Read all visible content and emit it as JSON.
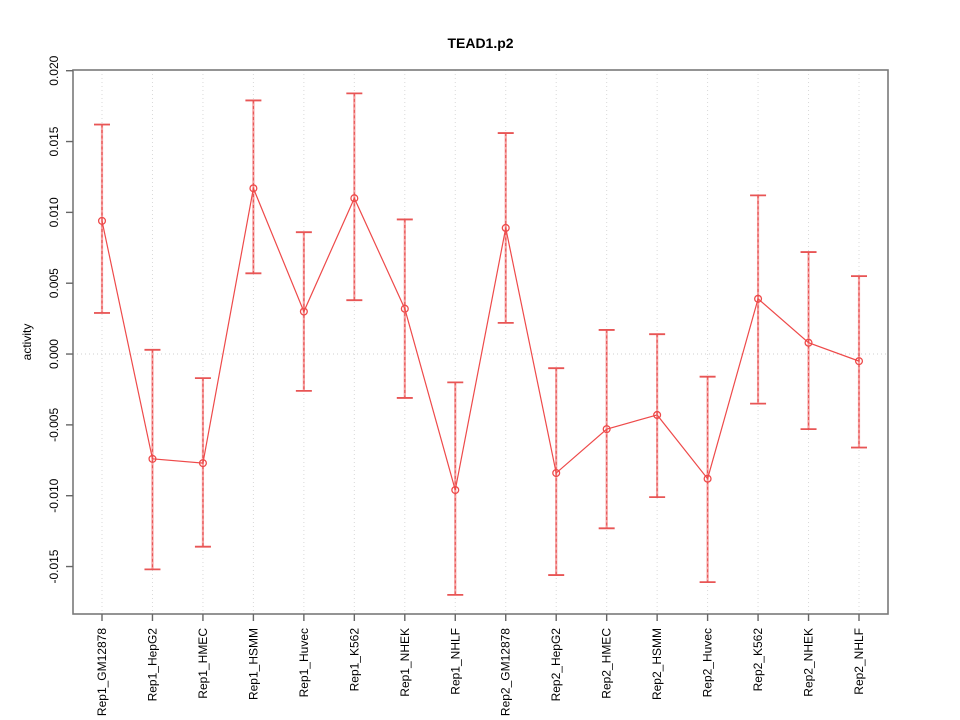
{
  "window": {
    "background": "#ffffff"
  },
  "chart_data": {
    "type": "line",
    "title": "TEAD1.p2",
    "xlabel": "",
    "ylabel": "activity",
    "legend": "none",
    "grid": "vertical dotted gridline at every category; horizontal dotted line at y=0",
    "marker": "open-circle",
    "error_bars": true,
    "categories": [
      "Rep1_GM12878",
      "Rep1_HepG2",
      "Rep1_HMEC",
      "Rep1_HSMM",
      "Rep1_Huvec",
      "Rep1_K562",
      "Rep1_NHEK",
      "Rep1_NHLF",
      "Rep2_GM12878",
      "Rep2_HepG2",
      "Rep2_HMEC",
      "Rep2_HSMM",
      "Rep2_Huvec",
      "Rep2_K562",
      "Rep2_NHEK",
      "Rep2_NHLF"
    ],
    "series": [
      {
        "name": "activity",
        "values": [
          0.0094,
          -0.0074,
          -0.0077,
          0.0117,
          0.003,
          0.011,
          0.0032,
          -0.0096,
          0.0089,
          -0.0084,
          -0.0053,
          -0.0043,
          -0.0088,
          0.0039,
          0.0008,
          -0.0005
        ],
        "error_upper": [
          0.0162,
          0.0003,
          -0.0017,
          0.0179,
          0.0086,
          0.0184,
          0.0095,
          -0.002,
          0.0156,
          -0.001,
          0.0017,
          0.0014,
          -0.0016,
          0.0112,
          0.0072,
          0.0055
        ],
        "error_lower": [
          0.0029,
          -0.0152,
          -0.0136,
          0.0057,
          -0.0026,
          0.0038,
          -0.0031,
          -0.017,
          0.0022,
          -0.0156,
          -0.0123,
          -0.0101,
          -0.0161,
          -0.0035,
          -0.0053,
          -0.0066
        ]
      }
    ],
    "yticks": [
      0.02,
      0.015,
      0.01,
      0.005,
      0.0,
      -0.005,
      -0.01,
      -0.015
    ],
    "ytick_labels": [
      "0.020",
      "0.015",
      "0.010",
      "0.005",
      "0.000",
      "-0.005",
      "-0.010",
      "-0.015"
    ],
    "ylim": [
      -0.01835,
      0.02005
    ]
  },
  "colors": {
    "line": "#ee4a4a",
    "marker": "#ee4a4a",
    "errorbar_light": "#f5a0a0",
    "errorbar_dash": "#e85555",
    "gridline": "#d9d9d9",
    "zero_line": "#cfcfcf",
    "box_border": "#7a7a7a",
    "tick": "#666666",
    "text": "#000000"
  }
}
